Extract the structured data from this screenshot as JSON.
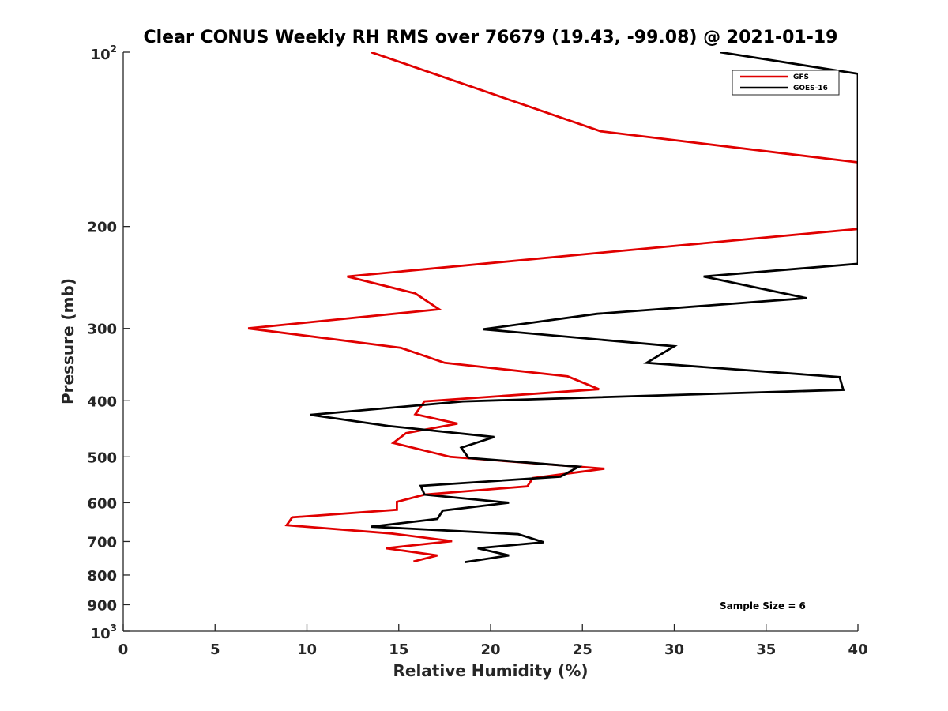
{
  "chart_data": {
    "type": "line",
    "title": "Clear CONUS Weekly RH RMS over 76679 (19.43, -99.08) @ 2021-01-19",
    "xlabel": "Relative Humidity (%)",
    "ylabel": "Pressure (mb)",
    "xlim": [
      0,
      40
    ],
    "ylim": [
      100,
      1000
    ],
    "y_scale": "log",
    "y_reversed": true,
    "x_ticks": [
      "0",
      "5",
      "10",
      "15",
      "20",
      "25",
      "30",
      "35",
      "40"
    ],
    "y_ticks": [
      {
        "value": 100,
        "base": "10",
        "exp": "2"
      },
      {
        "value": 200,
        "label": "200"
      },
      {
        "value": 300,
        "label": "300"
      },
      {
        "value": 400,
        "label": "400"
      },
      {
        "value": 500,
        "label": "500"
      },
      {
        "value": 600,
        "label": "600"
      },
      {
        "value": 700,
        "label": "700"
      },
      {
        "value": 800,
        "label": "800"
      },
      {
        "value": 900,
        "label": "900"
      },
      {
        "value": 1000,
        "base": "10",
        "exp": "3"
      }
    ],
    "legend_position": "top-right",
    "grid": false,
    "series": [
      {
        "name": "GFS",
        "color": "#e00000",
        "points": [
          [
            13.5,
            100
          ],
          [
            26.0,
            137
          ],
          [
            40.0,
            155
          ],
          [
            40.0,
            202
          ],
          [
            26.0,
            222
          ],
          [
            12.2,
            244
          ],
          [
            15.9,
            261
          ],
          [
            17.2,
            278
          ],
          [
            6.8,
            300
          ],
          [
            15.1,
            324
          ],
          [
            17.5,
            344
          ],
          [
            24.2,
            363
          ],
          [
            25.9,
            382
          ],
          [
            16.4,
            401
          ],
          [
            15.9,
            422
          ],
          [
            18.2,
            438
          ],
          [
            15.4,
            455
          ],
          [
            14.7,
            473
          ],
          [
            17.8,
            500
          ],
          [
            26.2,
            524
          ],
          [
            22.3,
            544
          ],
          [
            22.0,
            562
          ],
          [
            16.4,
            581
          ],
          [
            14.9,
            598
          ],
          [
            14.9,
            617
          ],
          [
            9.2,
            636
          ],
          [
            8.9,
            656
          ],
          [
            14.6,
            678
          ],
          [
            17.9,
            699
          ],
          [
            14.3,
            719
          ],
          [
            17.1,
            740
          ],
          [
            15.8,
            758
          ]
        ]
      },
      {
        "name": "GOES-16",
        "color": "#000000",
        "points": [
          [
            32.5,
            100
          ],
          [
            40.0,
            109
          ],
          [
            40.0,
            232
          ],
          [
            31.6,
            244
          ],
          [
            37.2,
            266
          ],
          [
            25.8,
            283
          ],
          [
            19.6,
            301
          ],
          [
            30.0,
            322
          ],
          [
            28.5,
            344
          ],
          [
            39.0,
            364
          ],
          [
            39.2,
            383
          ],
          [
            18.5,
            401
          ],
          [
            10.2,
            423
          ],
          [
            14.4,
            442
          ],
          [
            20.2,
            462
          ],
          [
            18.4,
            482
          ],
          [
            18.8,
            502
          ],
          [
            24.8,
            520
          ],
          [
            23.8,
            541
          ],
          [
            16.2,
            561
          ],
          [
            16.4,
            581
          ],
          [
            21.0,
            600
          ],
          [
            17.4,
            619
          ],
          [
            17.1,
            640
          ],
          [
            13.5,
            660
          ],
          [
            21.5,
            680
          ],
          [
            22.9,
            702
          ],
          [
            19.3,
            719
          ],
          [
            21.0,
            740
          ],
          [
            18.6,
            760
          ]
        ]
      }
    ]
  },
  "annotation": {
    "text": "Sample Size = 6"
  }
}
